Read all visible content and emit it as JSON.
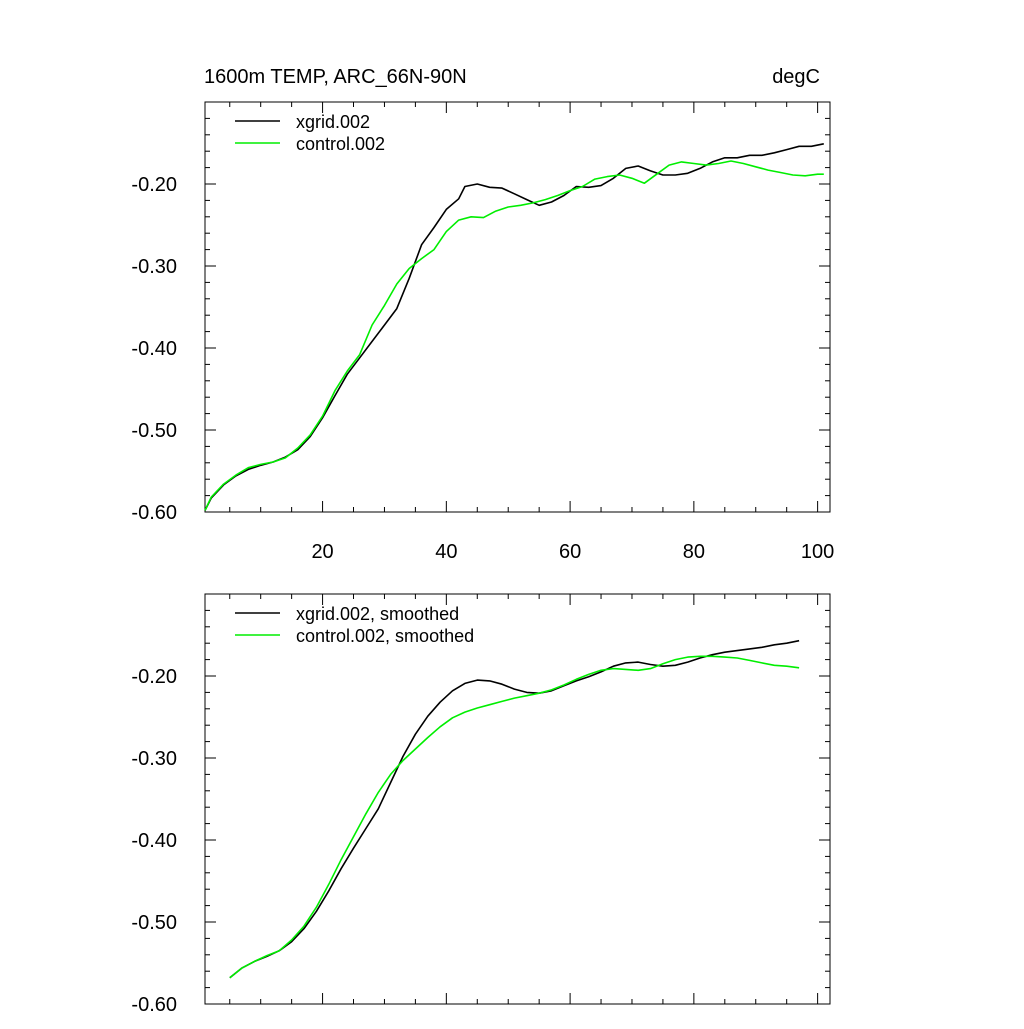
{
  "chart_data": [
    {
      "id": "top",
      "type": "line",
      "title": "1600m TEMP, ARC_66N-90N",
      "units": "degC",
      "xlabel": "",
      "ylabel": "",
      "xlim": [
        1,
        102
      ],
      "ylim": [
        -0.6,
        -0.1
      ],
      "x_ticks": [
        20,
        40,
        60,
        80,
        100
      ],
      "x_tick_labels": [
        "20",
        "40",
        "60",
        "80",
        "100"
      ],
      "y_ticks": [
        -0.6,
        -0.5,
        -0.4,
        -0.3,
        -0.2
      ],
      "y_tick_labels": [
        "-0.60",
        "-0.50",
        "-0.40",
        "-0.30",
        "-0.20"
      ],
      "legend_position": "top-left",
      "series": [
        {
          "name": "xgrid.002",
          "color": "#000000",
          "points": [
            [
              1,
              -0.598
            ],
            [
              2,
              -0.583
            ],
            [
              4,
              -0.567
            ],
            [
              6,
              -0.556
            ],
            [
              8,
              -0.548
            ],
            [
              10,
              -0.543
            ],
            [
              12,
              -0.539
            ],
            [
              14,
              -0.533
            ],
            [
              16,
              -0.524
            ],
            [
              18,
              -0.508
            ],
            [
              20,
              -0.485
            ],
            [
              22,
              -0.458
            ],
            [
              24,
              -0.432
            ],
            [
              26,
              -0.412
            ],
            [
              28,
              -0.392
            ],
            [
              30,
              -0.372
            ],
            [
              32,
              -0.352
            ],
            [
              34,
              -0.315
            ],
            [
              36,
              -0.274
            ],
            [
              38,
              -0.253
            ],
            [
              40,
              -0.231
            ],
            [
              42,
              -0.218
            ],
            [
              43,
              -0.203
            ],
            [
              45,
              -0.2
            ],
            [
              47,
              -0.204
            ],
            [
              49,
              -0.205
            ],
            [
              51,
              -0.212
            ],
            [
              53,
              -0.219
            ],
            [
              55,
              -0.226
            ],
            [
              57,
              -0.222
            ],
            [
              59,
              -0.214
            ],
            [
              61,
              -0.203
            ],
            [
              63,
              -0.204
            ],
            [
              65,
              -0.202
            ],
            [
              67,
              -0.193
            ],
            [
              69,
              -0.181
            ],
            [
              71,
              -0.178
            ],
            [
              73,
              -0.184
            ],
            [
              75,
              -0.189
            ],
            [
              77,
              -0.189
            ],
            [
              79,
              -0.187
            ],
            [
              81,
              -0.181
            ],
            [
              83,
              -0.173
            ],
            [
              85,
              -0.168
            ],
            [
              87,
              -0.168
            ],
            [
              89,
              -0.165
            ],
            [
              91,
              -0.165
            ],
            [
              93,
              -0.162
            ],
            [
              95,
              -0.158
            ],
            [
              97,
              -0.154
            ],
            [
              99,
              -0.154
            ],
            [
              101,
              -0.151
            ]
          ]
        },
        {
          "name": "control.002",
          "color": "#00ee00",
          "points": [
            [
              1,
              -0.598
            ],
            [
              2,
              -0.582
            ],
            [
              4,
              -0.566
            ],
            [
              6,
              -0.555
            ],
            [
              8,
              -0.546
            ],
            [
              10,
              -0.542
            ],
            [
              12,
              -0.539
            ],
            [
              14,
              -0.534
            ],
            [
              16,
              -0.522
            ],
            [
              18,
              -0.506
            ],
            [
              20,
              -0.483
            ],
            [
              22,
              -0.452
            ],
            [
              24,
              -0.428
            ],
            [
              26,
              -0.408
            ],
            [
              28,
              -0.372
            ],
            [
              30,
              -0.348
            ],
            [
              32,
              -0.322
            ],
            [
              34,
              -0.303
            ],
            [
              36,
              -0.291
            ],
            [
              38,
              -0.28
            ],
            [
              40,
              -0.258
            ],
            [
              42,
              -0.244
            ],
            [
              44,
              -0.24
            ],
            [
              46,
              -0.241
            ],
            [
              48,
              -0.233
            ],
            [
              50,
              -0.228
            ],
            [
              52,
              -0.226
            ],
            [
              54,
              -0.223
            ],
            [
              56,
              -0.219
            ],
            [
              58,
              -0.214
            ],
            [
              60,
              -0.208
            ],
            [
              62,
              -0.203
            ],
            [
              64,
              -0.194
            ],
            [
              66,
              -0.191
            ],
            [
              68,
              -0.189
            ],
            [
              70,
              -0.193
            ],
            [
              72,
              -0.199
            ],
            [
              74,
              -0.188
            ],
            [
              76,
              -0.177
            ],
            [
              78,
              -0.173
            ],
            [
              80,
              -0.175
            ],
            [
              82,
              -0.177
            ],
            [
              84,
              -0.175
            ],
            [
              86,
              -0.172
            ],
            [
              88,
              -0.175
            ],
            [
              90,
              -0.179
            ],
            [
              92,
              -0.183
            ],
            [
              94,
              -0.186
            ],
            [
              96,
              -0.189
            ],
            [
              98,
              -0.19
            ],
            [
              100,
              -0.188
            ],
            [
              101,
              -0.188
            ]
          ]
        }
      ]
    },
    {
      "id": "bottom",
      "type": "line",
      "title": "",
      "xlabel": "",
      "ylabel": "",
      "xlim": [
        1,
        102
      ],
      "ylim": [
        -0.6,
        -0.1
      ],
      "x_ticks": [
        20,
        40,
        60,
        80,
        100
      ],
      "y_ticks": [
        -0.6,
        -0.5,
        -0.4,
        -0.3,
        -0.2
      ],
      "y_tick_labels": [
        "-0.60",
        "-0.50",
        "-0.40",
        "-0.30",
        "-0.20"
      ],
      "legend_position": "top-left",
      "series": [
        {
          "name": "xgrid.002, smoothed",
          "color": "#000000",
          "points": [
            [
              5,
              -0.568
            ],
            [
              7,
              -0.556
            ],
            [
              9,
              -0.548
            ],
            [
              11,
              -0.542
            ],
            [
              13,
              -0.535
            ],
            [
              15,
              -0.524
            ],
            [
              17,
              -0.508
            ],
            [
              19,
              -0.487
            ],
            [
              21,
              -0.462
            ],
            [
              23,
              -0.435
            ],
            [
              25,
              -0.41
            ],
            [
              27,
              -0.386
            ],
            [
              29,
              -0.362
            ],
            [
              31,
              -0.33
            ],
            [
              33,
              -0.298
            ],
            [
              35,
              -0.271
            ],
            [
              37,
              -0.249
            ],
            [
              39,
              -0.232
            ],
            [
              41,
              -0.218
            ],
            [
              43,
              -0.209
            ],
            [
              45,
              -0.205
            ],
            [
              47,
              -0.206
            ],
            [
              49,
              -0.21
            ],
            [
              51,
              -0.216
            ],
            [
              53,
              -0.22
            ],
            [
              55,
              -0.221
            ],
            [
              57,
              -0.218
            ],
            [
              59,
              -0.212
            ],
            [
              61,
              -0.206
            ],
            [
              63,
              -0.201
            ],
            [
              65,
              -0.195
            ],
            [
              67,
              -0.188
            ],
            [
              69,
              -0.184
            ],
            [
              71,
              -0.183
            ],
            [
              73,
              -0.186
            ],
            [
              75,
              -0.188
            ],
            [
              77,
              -0.187
            ],
            [
              79,
              -0.183
            ],
            [
              81,
              -0.178
            ],
            [
              83,
              -0.174
            ],
            [
              85,
              -0.171
            ],
            [
              87,
              -0.169
            ],
            [
              89,
              -0.167
            ],
            [
              91,
              -0.165
            ],
            [
              93,
              -0.162
            ],
            [
              95,
              -0.16
            ],
            [
              97,
              -0.157
            ]
          ]
        },
        {
          "name": "control.002, smoothed",
          "color": "#00ee00",
          "points": [
            [
              5,
              -0.568
            ],
            [
              7,
              -0.556
            ],
            [
              9,
              -0.548
            ],
            [
              11,
              -0.541
            ],
            [
              13,
              -0.535
            ],
            [
              15,
              -0.522
            ],
            [
              17,
              -0.505
            ],
            [
              19,
              -0.482
            ],
            [
              21,
              -0.454
            ],
            [
              23,
              -0.424
            ],
            [
              25,
              -0.396
            ],
            [
              27,
              -0.368
            ],
            [
              29,
              -0.342
            ],
            [
              31,
              -0.32
            ],
            [
              33,
              -0.303
            ],
            [
              35,
              -0.289
            ],
            [
              37,
              -0.275
            ],
            [
              39,
              -0.262
            ],
            [
              41,
              -0.251
            ],
            [
              43,
              -0.244
            ],
            [
              45,
              -0.239
            ],
            [
              47,
              -0.235
            ],
            [
              49,
              -0.231
            ],
            [
              51,
              -0.227
            ],
            [
              53,
              -0.224
            ],
            [
              55,
              -0.221
            ],
            [
              57,
              -0.217
            ],
            [
              59,
              -0.211
            ],
            [
              61,
              -0.204
            ],
            [
              63,
              -0.198
            ],
            [
              65,
              -0.193
            ],
            [
              67,
              -0.191
            ],
            [
              69,
              -0.192
            ],
            [
              71,
              -0.193
            ],
            [
              73,
              -0.191
            ],
            [
              75,
              -0.185
            ],
            [
              77,
              -0.18
            ],
            [
              79,
              -0.177
            ],
            [
              81,
              -0.176
            ],
            [
              83,
              -0.176
            ],
            [
              85,
              -0.177
            ],
            [
              87,
              -0.178
            ],
            [
              89,
              -0.181
            ],
            [
              91,
              -0.184
            ],
            [
              93,
              -0.187
            ],
            [
              95,
              -0.188
            ],
            [
              97,
              -0.19
            ]
          ]
        }
      ]
    }
  ]
}
